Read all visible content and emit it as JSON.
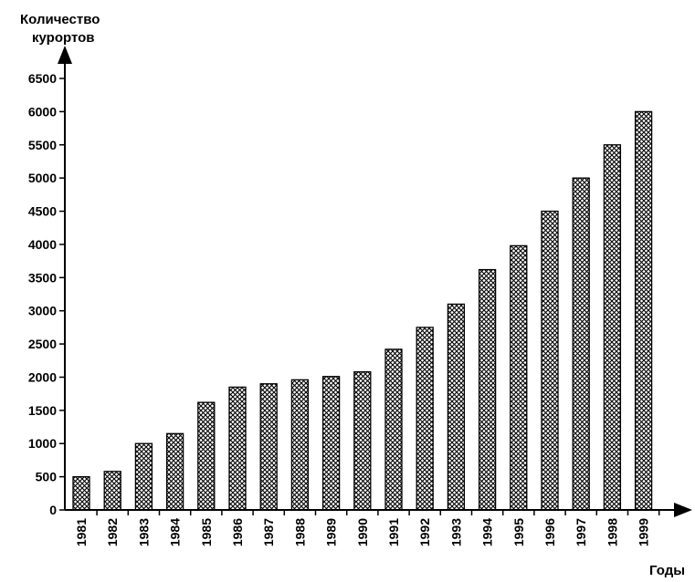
{
  "chart_data": {
    "type": "bar",
    "ylabel_line1": "Количество",
    "ylabel_line2": "курортов",
    "xlabel": "Годы",
    "categories": [
      "1981",
      "1982",
      "1983",
      "1984",
      "1985",
      "1986",
      "1987",
      "1988",
      "1989",
      "1990",
      "1991",
      "1992",
      "1993",
      "1994",
      "1995",
      "1996",
      "1997",
      "1998",
      "1999"
    ],
    "values": [
      500,
      580,
      1000,
      1150,
      1620,
      1850,
      1900,
      1960,
      2010,
      2080,
      2420,
      2750,
      3100,
      3620,
      3980,
      4500,
      5000,
      5500,
      6000
    ],
    "ylim": [
      0,
      6500
    ],
    "yticks": [
      0,
      500,
      1000,
      1500,
      2000,
      2500,
      3000,
      3500,
      4000,
      4500,
      5000,
      5500,
      6000,
      6500
    ],
    "bar_fill": "crosshatch",
    "grid": false
  }
}
